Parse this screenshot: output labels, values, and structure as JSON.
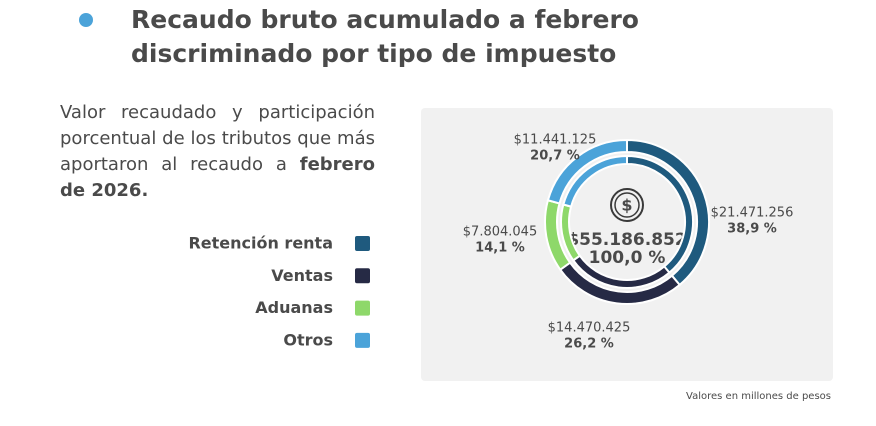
{
  "chart_data": {
    "type": "donut",
    "title_line1": "Recaudo bruto acumulado a febrero",
    "title_line2": "discriminado por tipo de impuesto",
    "description": "Valor recaudado y participación porcentual de los tributos que más aportaron al recaudo a",
    "description_bold": "febrero de 2026.",
    "categories": [
      "Retención renta",
      "Ventas",
      "Aduanas",
      "Otros"
    ],
    "colors": [
      "#1f5a7e",
      "#262a45",
      "#8ed86a",
      "#4ba3d9"
    ],
    "values": [
      21471256,
      14470425,
      7804045,
      11441125
    ],
    "value_labels": [
      "$21.471.256",
      "$14.470.425",
      "$7.804.045",
      "$11.441.125"
    ],
    "percentages": [
      38.9,
      26.2,
      14.1,
      20.7
    ],
    "percentage_labels": [
      "38,9 %",
      "26,2 %",
      "14,1 %",
      "20,7 %"
    ],
    "total": {
      "value": 55186852,
      "label": "$55.186.852"
    },
    "total_share": {
      "value": 100,
      "label": "100,0 %"
    },
    "note": "Valores en millones de pesos"
  }
}
